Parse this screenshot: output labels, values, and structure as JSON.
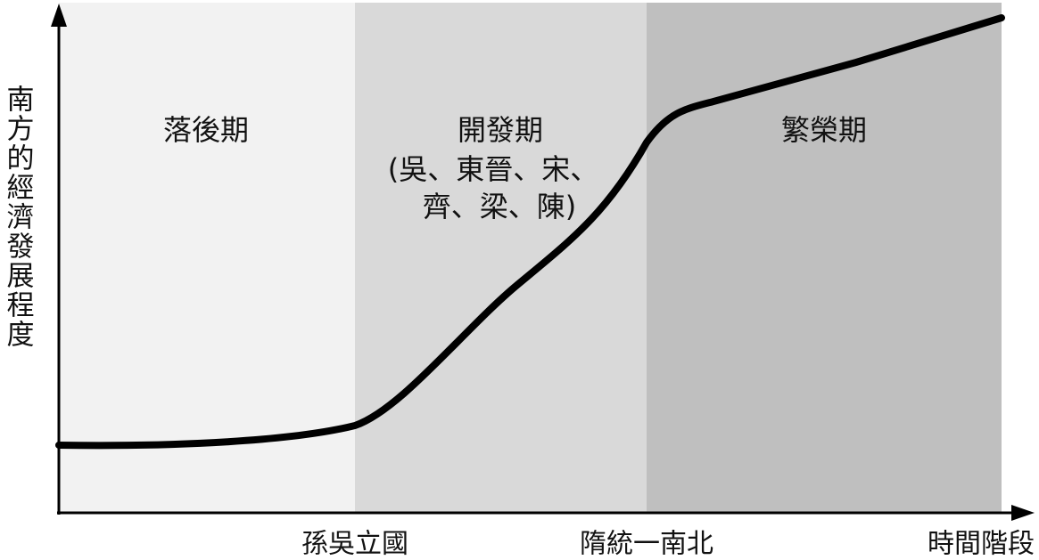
{
  "axes": {
    "y_label": "南方的經濟發展程度",
    "x_label": "時間階段"
  },
  "milestones": [
    "孫吳立國",
    "隋統一南北"
  ],
  "periods": [
    {
      "name": "落後期"
    },
    {
      "name": "開發期",
      "note_lines": [
        "(吳、東晉、宋、",
        "齊、梁、陳)"
      ]
    },
    {
      "name": "繁榮期"
    }
  ]
}
